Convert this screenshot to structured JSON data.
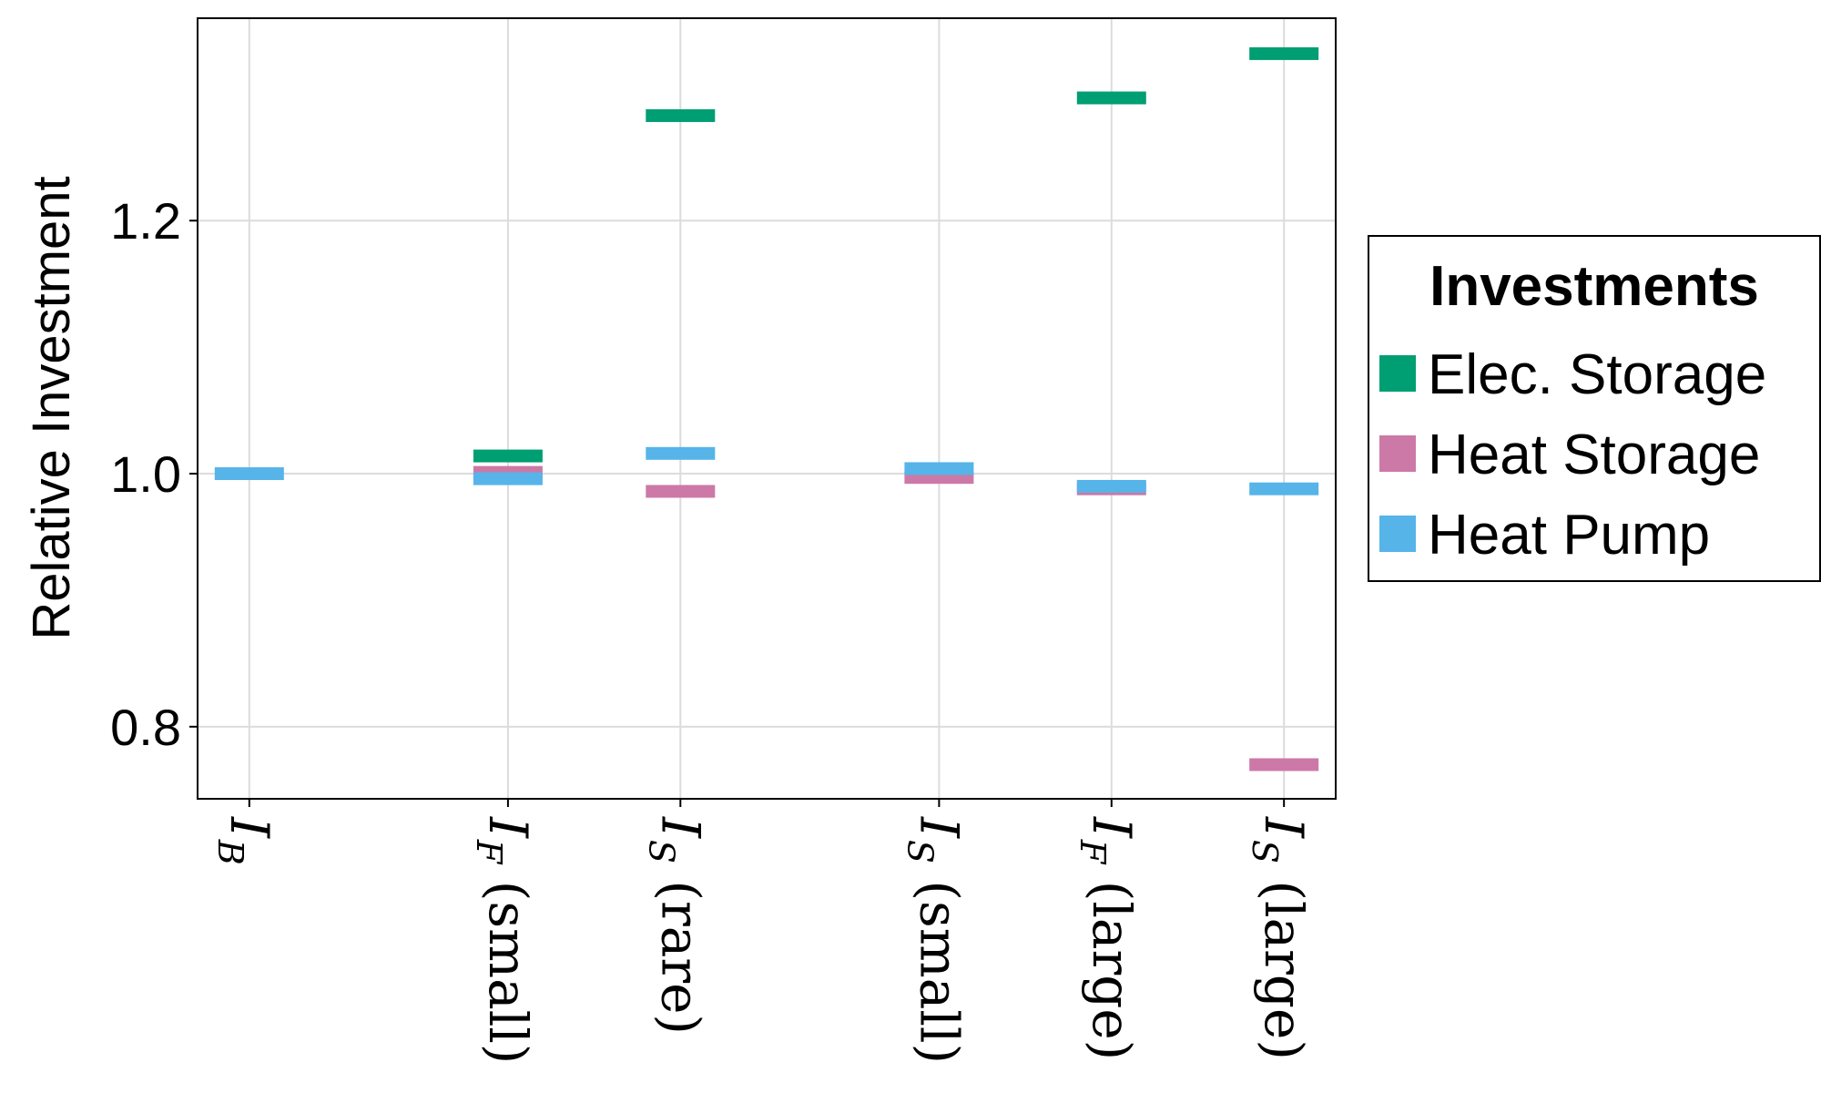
{
  "chart_data": {
    "type": "scatter",
    "ylabel": "Relative Investment",
    "xlabel": "",
    "ylim": [
      0.743,
      1.36
    ],
    "yticks": [
      0.8,
      1.0,
      1.2
    ],
    "ytick_labels": [
      "0.8",
      "1.0",
      "1.2"
    ],
    "grid": true,
    "categories": [
      {
        "main": "I",
        "sub": "B",
        "suffix": ""
      },
      {
        "main": "I",
        "sub": "F",
        "suffix": " (small)"
      },
      {
        "main": "I",
        "sub": "S",
        "suffix": " (rare)"
      },
      {
        "main": "I",
        "sub": "S",
        "suffix": " (small)"
      },
      {
        "main": "I",
        "sub": "F",
        "suffix": " (large)"
      },
      {
        "main": "I",
        "sub": "S",
        "suffix": " (large)"
      }
    ],
    "x_positions": [
      1,
      2.5,
      3.5,
      5,
      6,
      7
    ],
    "xlim": [
      0.7,
      7.3
    ],
    "legend": {
      "title": "Investments",
      "position": "right"
    },
    "series": [
      {
        "name": "Elec. Storage",
        "color": "#009E73",
        "values": [
          null,
          1.014,
          1.283,
          null,
          1.297,
          1.332
        ]
      },
      {
        "name": "Heat Storage",
        "color": "#CC79A7",
        "values": [
          null,
          1.001,
          0.986,
          0.997,
          0.988,
          0.77
        ]
      },
      {
        "name": "Heat Pump",
        "color": "#56B4E9",
        "values": [
          1.0,
          0.996,
          1.016,
          1.004,
          0.99,
          0.988
        ]
      }
    ]
  }
}
